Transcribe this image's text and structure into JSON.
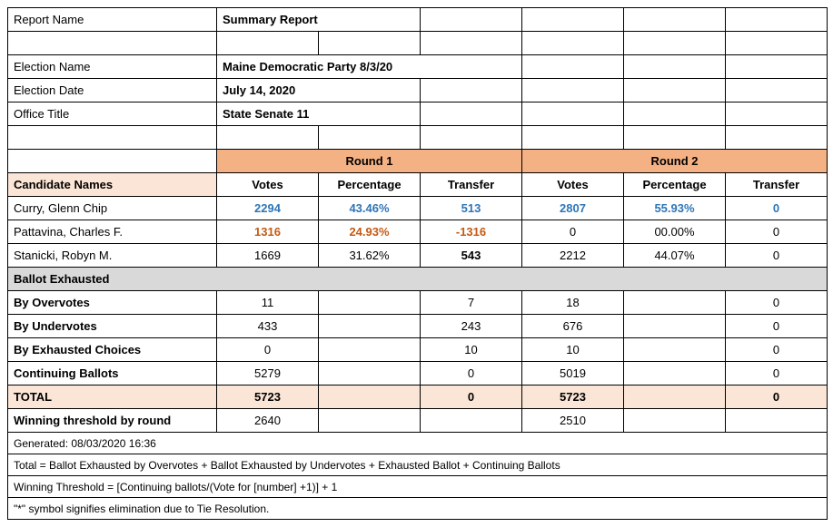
{
  "meta": {
    "report_name_label": "Report Name",
    "report_name": "Summary Report",
    "election_name_label": "Election Name",
    "election_name": "Maine Democratic Party  8/3/20",
    "election_date_label": "Election Date",
    "election_date": "July 14, 2020",
    "office_title_label": "Office Title",
    "office_title": "State Senate 11"
  },
  "headers": {
    "candidate_names": "Candidate Names",
    "round1": "Round 1",
    "round2": "Round 2",
    "votes": "Votes",
    "percentage": "Percentage",
    "transfer": "Transfer"
  },
  "candidates": [
    {
      "name": "Curry, Glenn Chip",
      "style": "blue",
      "r1_votes": "2294",
      "r1_pct": "43.46%",
      "r1_xfer": "513",
      "r2_votes": "2807",
      "r2_pct": "55.93%",
      "r2_xfer": "0"
    },
    {
      "name": "Pattavina, Charles F.",
      "style": "orange",
      "r1_votes": "1316",
      "r1_pct": "24.93%",
      "r1_xfer": "-1316",
      "r2_votes": "0",
      "r2_pct": "00.00%",
      "r2_xfer": "0",
      "r2_style": "plain"
    },
    {
      "name": "Stanicki, Robyn M.",
      "style": "plain",
      "r1_votes": "1669",
      "r1_pct": "31.62%",
      "r1_xfer": "543",
      "r1_xfer_bold": true,
      "r2_votes": "2212",
      "r2_pct": "44.07%",
      "r2_xfer": "0"
    }
  ],
  "sections": {
    "ballot_exhausted": "Ballot Exhausted",
    "by_overvotes": "  By Overvotes",
    "by_undervotes": "  By Undervotes",
    "by_exhausted_choices": "  By Exhausted Choices",
    "continuing_ballots": "Continuing Ballots",
    "total": "TOTAL",
    "winning_threshold": "Winning threshold by round"
  },
  "exhausted": {
    "overvotes": {
      "r1_votes": "11",
      "r1_xfer": "7",
      "r2_votes": "18",
      "r2_xfer": "0"
    },
    "undervotes": {
      "r1_votes": "433",
      "r1_xfer": "243",
      "r2_votes": "676",
      "r2_xfer": "0"
    },
    "choices": {
      "r1_votes": "0",
      "r1_xfer": "10",
      "r2_votes": "10",
      "r2_xfer": "0"
    }
  },
  "continuing": {
    "r1_votes": "5279",
    "r1_xfer": "0",
    "r2_votes": "5019",
    "r2_xfer": "0"
  },
  "total": {
    "r1_votes": "5723",
    "r1_xfer": "0",
    "r2_votes": "5723",
    "r2_xfer": "0"
  },
  "threshold": {
    "r1_votes": "2640",
    "r2_votes": "2510"
  },
  "footer": {
    "generated": "Generated: 08/03/2020 16:36",
    "total_formula": "Total = Ballot Exhausted by Overvotes + Ballot Exhausted by Undervotes + Exhausted Ballot  + Continuing Ballots",
    "winning_formula": "Winning Threshold = [Continuing ballots/(Vote for [number] +1)] + 1",
    "tie_note": "\"*\" symbol signifies elimination due to Tie Resolution."
  },
  "colors": {
    "peach": "#f4b183",
    "peach_light": "#fbe5d6",
    "gray": "#d9d9d9",
    "blue_text": "#2e75b6",
    "orange_text": "#c55a11",
    "border": "#000000",
    "background": "#ffffff"
  }
}
